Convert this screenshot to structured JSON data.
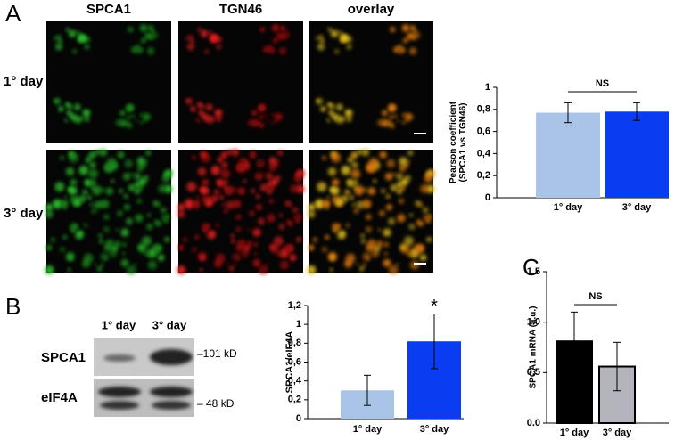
{
  "panel_labels": [
    "A",
    "B",
    "C"
  ],
  "microscopy": {
    "columns": [
      "SPCA1",
      "TGN46",
      "overlay"
    ],
    "rows": [
      "1° day",
      "3° day"
    ]
  },
  "blot": {
    "lanes": [
      "1° day",
      "3° day"
    ],
    "bands": [
      "SPCA1",
      "eIF4A"
    ],
    "markers": [
      "–101 kD",
      "– 48 kD"
    ]
  },
  "chart_data": [
    {
      "type": "bar",
      "ylabel": [
        "Pearson coefficient",
        "(SPCA1 vs TGN46)"
      ],
      "categories": [
        "1° day",
        "3° day"
      ],
      "values": [
        0.77,
        0.78
      ],
      "errors": [
        0.09,
        0.08
      ],
      "colors": [
        "#a9c4e6",
        "#0a3cf2"
      ],
      "ylim": [
        0,
        1
      ],
      "yticks": [
        0,
        {
          "value": 0.2,
          "label": "0,2"
        },
        {
          "value": 0.4,
          "label": "0,4"
        },
        {
          "value": 0.6,
          "label": "0,6"
        },
        {
          "value": 0.8,
          "label": "0,8"
        },
        1
      ],
      "annotation": {
        "text": "NS",
        "categories": [
          "1° day",
          "3° day"
        ]
      }
    },
    {
      "type": "bar",
      "ylabel": [
        "SPCA1/eIF4A"
      ],
      "categories": [
        "1° day",
        "3° day"
      ],
      "values": [
        0.3,
        0.82
      ],
      "errors": [
        0.16,
        0.29
      ],
      "colors": [
        "#a9c4e6",
        "#0a3cf2"
      ],
      "ylim": [
        0,
        1.2
      ],
      "yticks": [
        0,
        {
          "value": 0.2,
          "label": "0,2"
        },
        {
          "value": 0.4,
          "label": "0,4"
        },
        {
          "value": 0.6,
          "label": "0,6"
        },
        {
          "value": 0.8,
          "label": "0,8"
        },
        1,
        {
          "value": 1.2,
          "label": "1,2"
        }
      ],
      "annotation": {
        "text": "*",
        "categories": [
          "3° day"
        ]
      }
    },
    {
      "type": "bar",
      "ylabel": [
        "SPCA1 mRNA (a.u.)"
      ],
      "categories": [
        "1° day",
        "3° day"
      ],
      "values": [
        0.81,
        0.56
      ],
      "errors": [
        0.29,
        0.24
      ],
      "colors": [
        "#000000",
        "#b4b4bc"
      ],
      "bar_edge": "#000000",
      "ylim": [
        0,
        1.5
      ],
      "yticks": [
        {
          "value": 0,
          "label": "0.0"
        },
        0.5,
        {
          "value": 1,
          "label": "1.0"
        },
        1.5
      ],
      "annotation": {
        "text": "NS",
        "categories": [
          "1° day",
          "3° day"
        ]
      }
    }
  ]
}
